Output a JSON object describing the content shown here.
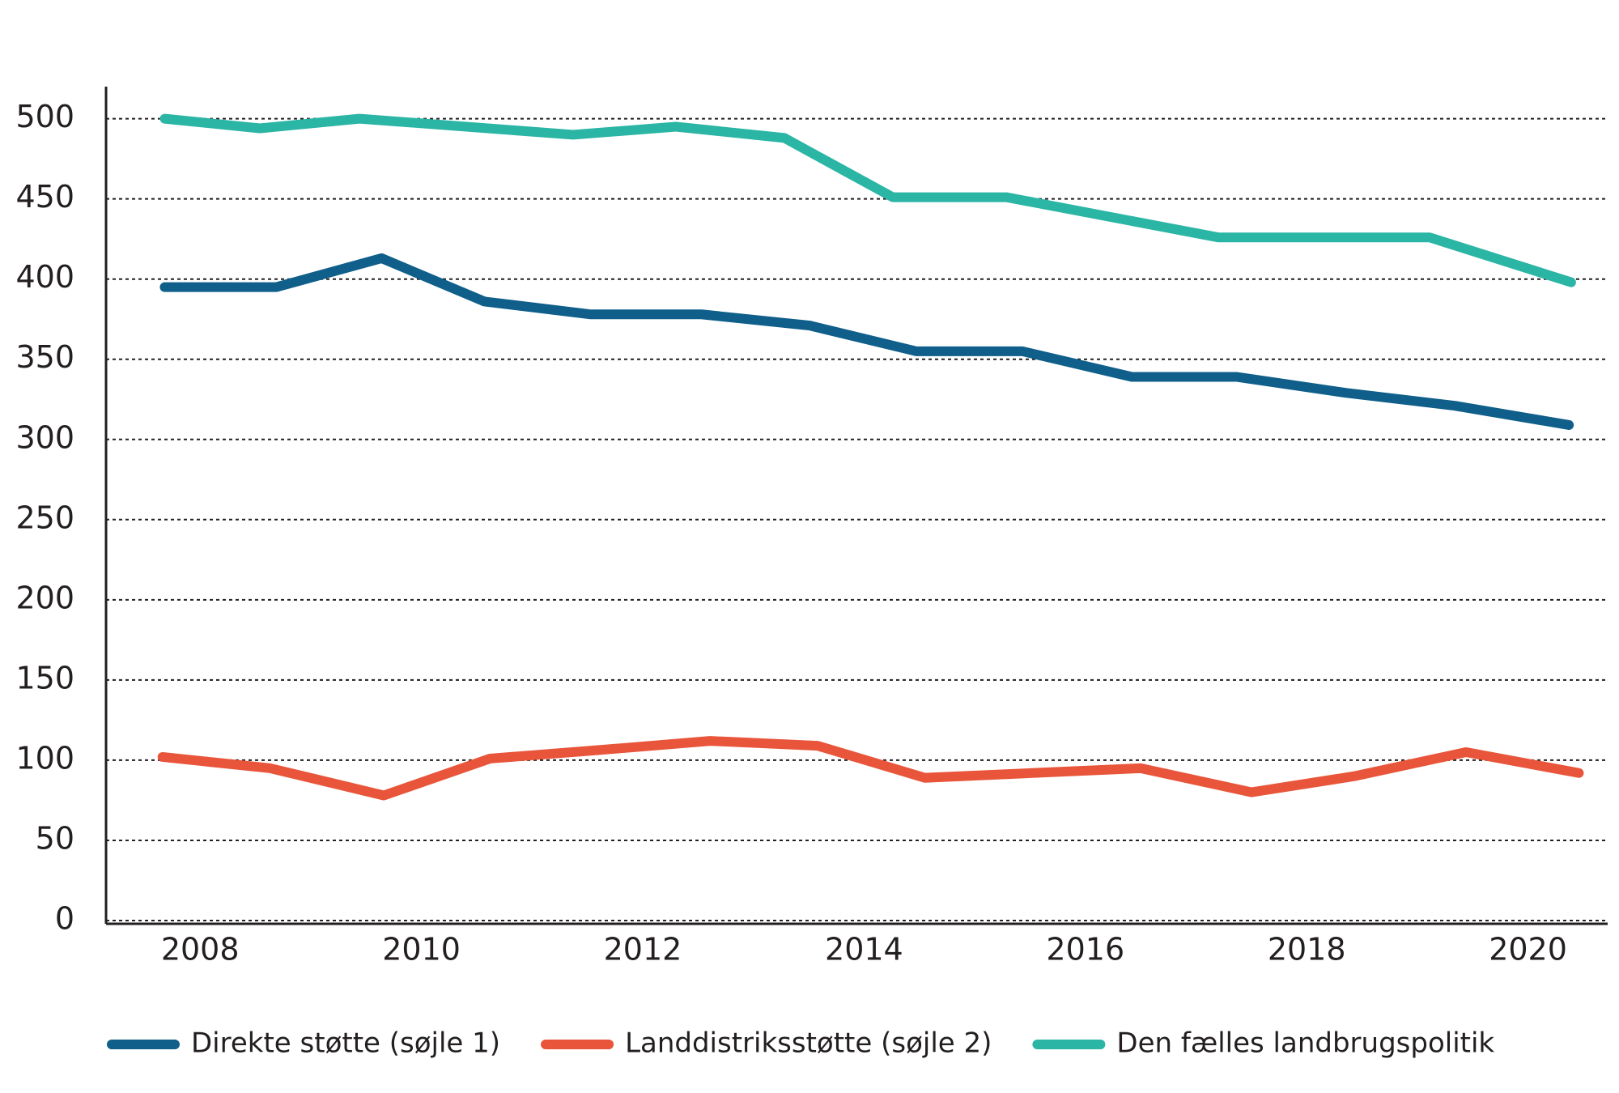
{
  "chart_data": {
    "type": "line",
    "xlim": [
      2007.15,
      2020.72
    ],
    "xticks": [
      2008,
      2010,
      2012,
      2014,
      2016,
      2018,
      2020
    ],
    "ylim": [
      0,
      520
    ],
    "yticks": [
      0,
      50,
      100,
      150,
      200,
      250,
      300,
      350,
      400,
      450,
      500
    ],
    "grid": true,
    "legend": "bottom",
    "series": [
      {
        "name": "Direkte støtte (søjle 1)",
        "color": "#0f5f8a",
        "x": [
          2007.68,
          2008.69,
          2009.64,
          2010.57,
          2011.53,
          2012.53,
          2013.51,
          2014.47,
          2015.43,
          2016.42,
          2017.37,
          2018.36,
          2019.34,
          2020.37
        ],
        "values": [
          395,
          395,
          413,
          386,
          378,
          378,
          371,
          355,
          355,
          339,
          339,
          329,
          321,
          309
        ]
      },
      {
        "name": "Landdistriksstøtte (søjle 2)",
        "color": "#e8553a",
        "x": [
          2007.66,
          2008.63,
          2009.66,
          2010.62,
          2011.55,
          2012.61,
          2013.58,
          2014.55,
          2015.52,
          2016.5,
          2017.5,
          2018.43,
          2019.44,
          2020.46
        ],
        "values": [
          102,
          95,
          78,
          101,
          106,
          112,
          109,
          89,
          92,
          95,
          80,
          90,
          105,
          92
        ]
      },
      {
        "name": "Den fælles landbrugspolitik",
        "color": "#2ab5a5",
        "x": [
          2007.68,
          2008.54,
          2009.44,
          2011.37,
          2012.3,
          2013.28,
          2014.26,
          2015.29,
          2017.2,
          2019.11,
          2020.39
        ],
        "values": [
          500,
          494,
          500,
          490,
          495,
          488,
          451,
          451,
          426,
          426,
          398
        ]
      }
    ]
  }
}
